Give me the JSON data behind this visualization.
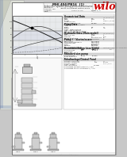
{
  "bg_color": "#c8c8c8",
  "page_color": "#ffffff",
  "page_border": "#888888",
  "header_bg": "#f0f0f0",
  "wilo_red": "#cc0000",
  "section_header_bg": "#d8d8d8",
  "chart_bg": "#e8eaec",
  "grid_color": "#bbbbbb",
  "line_dark": "#222222",
  "line_med": "#555555",
  "text_dark": "#111111",
  "text_med": "#333333",
  "text_light": "#666666",
  "table_border": "#999999",
  "folded_paper_bg": "#dde0d8",
  "folded_paper_edge": "#aaaaaa"
}
